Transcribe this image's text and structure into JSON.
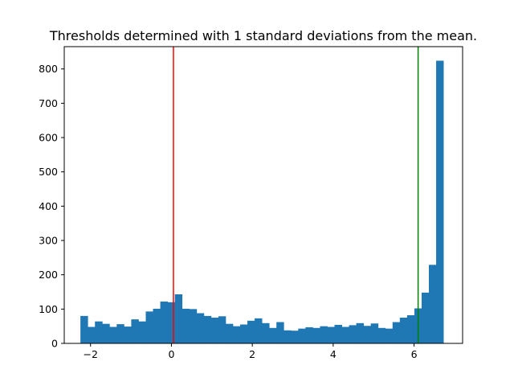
{
  "chart_data": {
    "type": "bar",
    "title": "Thresholds determined with 1 standard deviations from the mean.",
    "xlabel": "",
    "ylabel": "",
    "xlim": [
      -2.65,
      7.2
    ],
    "ylim": [
      0,
      865
    ],
    "bin_start": -2.25,
    "bin_width": 0.1795,
    "values": [
      80,
      48,
      64,
      57,
      48,
      56,
      49,
      70,
      64,
      93,
      101,
      122,
      120,
      143,
      101,
      100,
      88,
      80,
      75,
      79,
      57,
      50,
      55,
      66,
      73,
      59,
      45,
      62,
      38,
      37,
      43,
      47,
      45,
      50,
      48,
      54,
      48,
      53,
      59,
      51,
      58,
      45,
      43,
      62,
      75,
      82,
      102,
      148,
      229,
      824
    ],
    "x_ticks": [
      {
        "value": -2,
        "label": "−2"
      },
      {
        "value": 0,
        "label": "0"
      },
      {
        "value": 2,
        "label": "2"
      },
      {
        "value": 4,
        "label": "4"
      },
      {
        "value": 6,
        "label": "6"
      }
    ],
    "y_ticks": [
      {
        "value": 0,
        "label": "0"
      },
      {
        "value": 100,
        "label": "100"
      },
      {
        "value": 200,
        "label": "200"
      },
      {
        "value": 300,
        "label": "300"
      },
      {
        "value": 400,
        "label": "400"
      },
      {
        "value": 500,
        "label": "500"
      },
      {
        "value": 600,
        "label": "600"
      },
      {
        "value": 700,
        "label": "700"
      },
      {
        "value": 800,
        "label": "800"
      }
    ],
    "thresholds": [
      {
        "value": 0.05,
        "color": "#ff0000"
      },
      {
        "value": 6.1,
        "color": "#008000"
      }
    ],
    "bar_color": "#1f77b4",
    "grid": false
  }
}
